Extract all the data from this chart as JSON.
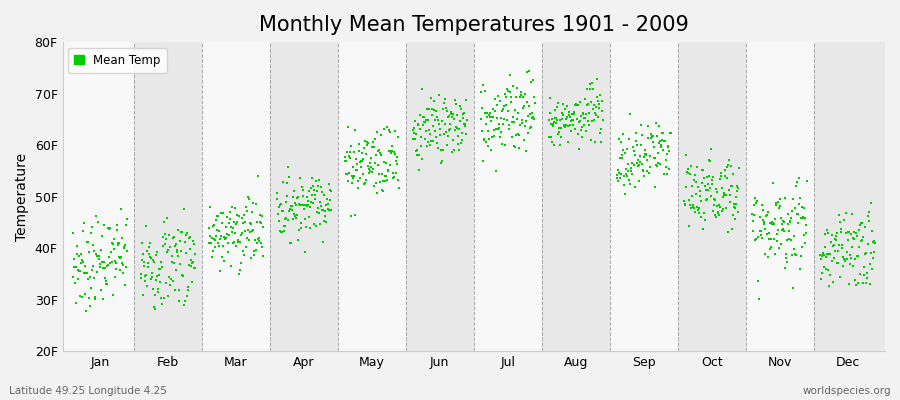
{
  "title": "Monthly Mean Temperatures 1901 - 2009",
  "ylabel": "Temperature",
  "ylim": [
    20,
    80
  ],
  "yticks": [
    20,
    30,
    40,
    50,
    60,
    70,
    80
  ],
  "ytick_labels": [
    "20F",
    "30F",
    "40F",
    "50F",
    "60F",
    "70F",
    "80F"
  ],
  "months": [
    "Jan",
    "Feb",
    "Mar",
    "Apr",
    "May",
    "Jun",
    "Jul",
    "Aug",
    "Sep",
    "Oct",
    "Nov",
    "Dec"
  ],
  "n_years": 109,
  "start_year": 1901,
  "end_year": 2009,
  "mean_temps_F": [
    37.5,
    37.5,
    43.0,
    48.5,
    57.0,
    63.0,
    66.0,
    65.5,
    57.5,
    51.0,
    44.0,
    39.5
  ],
  "std_temps_F": [
    4.0,
    4.5,
    3.5,
    3.0,
    3.5,
    3.5,
    3.5,
    3.0,
    3.5,
    3.5,
    4.0,
    4.0
  ],
  "trend_F_per_century": 2.5,
  "dot_color": "#00cc00",
  "dot_size": 4,
  "dot_marker": "s",
  "background_color": "#f2f2f2",
  "band_light": "#f8f8f8",
  "band_dark": "#e8e8e8",
  "grid_line_color": "#888888",
  "title_fontsize": 15,
  "axis_label_fontsize": 10,
  "tick_fontsize": 9,
  "legend_label": "Mean Temp",
  "bottom_left_text": "Latitude 49.25 Longitude 4.25",
  "bottom_right_text": "worldspecies.org"
}
